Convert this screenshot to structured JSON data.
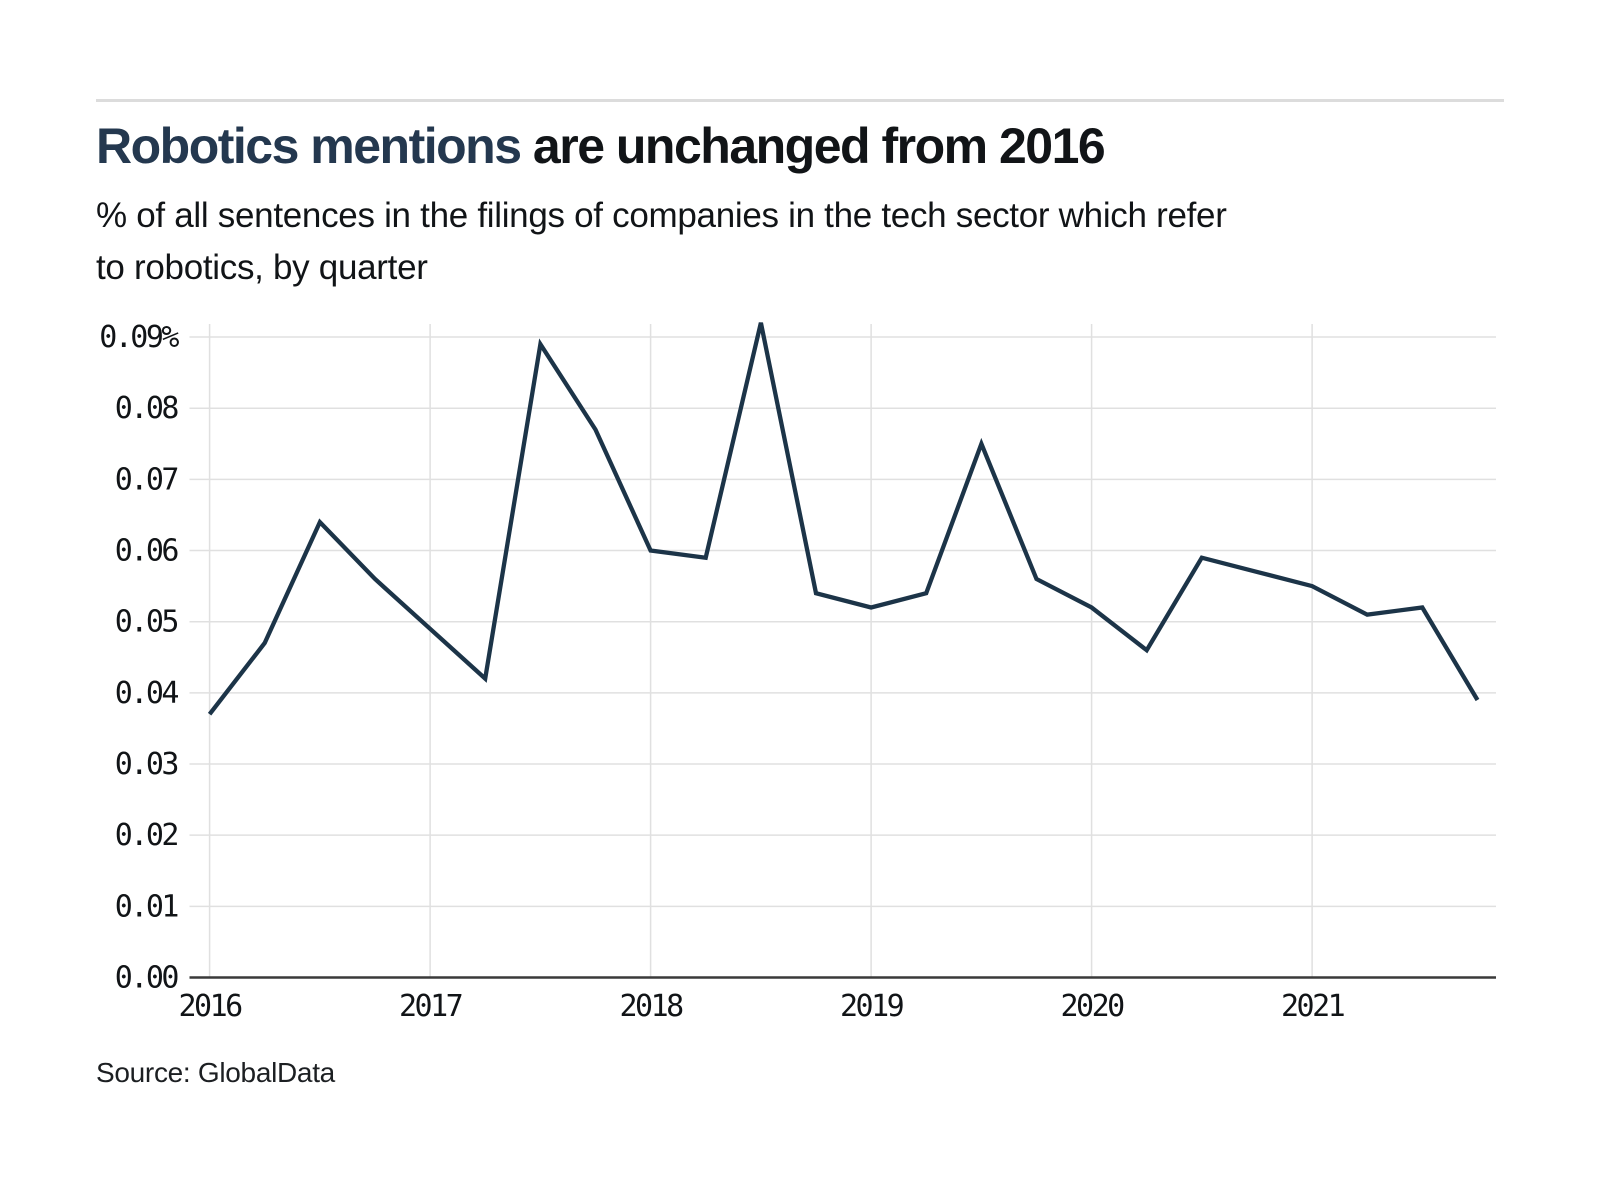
{
  "header": {
    "title_highlight": "Robotics mentions",
    "title_rest": " are unchanged from 2016",
    "subtitle_line1": "% of all sentences in the filings of companies in the tech sector which refer",
    "subtitle_line2": "to robotics, by quarter"
  },
  "footer": {
    "source": "Source: GlobalData"
  },
  "colors": {
    "line": "#1c3448",
    "title_highlight": "#24384f",
    "text": "#111417",
    "grid": "#e0e0e0",
    "axis": "#3a3a3a",
    "rule": "#dcdcdc"
  },
  "chart_data": {
    "type": "line",
    "title": "Robotics mentions are unchanged from 2016",
    "subtitle": "% of all sentences in the filings of companies in the tech sector which refer to robotics, by quarter",
    "unit": "%",
    "x": [
      "2016 Q1",
      "2016 Q2",
      "2016 Q3",
      "2016 Q4",
      "2017 Q1",
      "2017 Q2",
      "2017 Q3",
      "2017 Q4",
      "2018 Q1",
      "2018 Q2",
      "2018 Q3",
      "2018 Q4",
      "2019 Q1",
      "2019 Q2",
      "2019 Q3",
      "2019 Q4",
      "2020 Q1",
      "2020 Q2",
      "2020 Q3",
      "2020 Q4",
      "2021 Q1",
      "2021 Q2",
      "2021 Q3",
      "2021 Q4"
    ],
    "values": [
      0.037,
      0.047,
      0.064,
      0.056,
      0.049,
      0.042,
      0.089,
      0.077,
      0.06,
      0.059,
      0.092,
      0.054,
      0.052,
      0.054,
      0.075,
      0.056,
      0.052,
      0.046,
      0.059,
      0.057,
      0.055,
      0.051,
      0.052,
      0.039
    ],
    "ylim": [
      0,
      0.092
    ],
    "ytick_values": [
      0.09,
      0.08,
      0.07,
      0.06,
      0.05,
      0.04,
      0.03,
      0.02,
      0.01,
      0.0
    ],
    "ytick_labels": [
      "0.09%",
      "0.08",
      "0.07",
      "0.06",
      "0.05",
      "0.04",
      "0.03",
      "0.02",
      "0.01",
      "0.00"
    ],
    "xtick_labels": [
      "2016",
      "2017",
      "2018",
      "2019",
      "2020",
      "2021"
    ],
    "grid": true,
    "legend": "none",
    "source": "Source: GlobalData"
  }
}
